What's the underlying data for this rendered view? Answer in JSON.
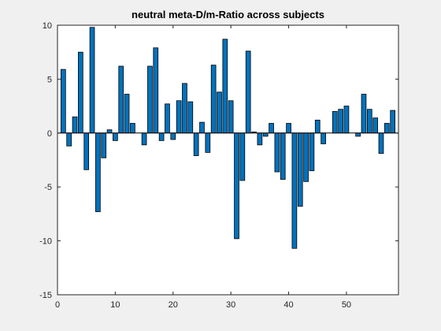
{
  "chart_data": {
    "type": "bar",
    "title": "neutral meta-D/m-Ratio across subjects",
    "xlabel": "",
    "ylabel": "",
    "xlim": [
      0,
      59
    ],
    "ylim": [
      -15,
      10
    ],
    "xticks": [
      0,
      10,
      20,
      30,
      40,
      50
    ],
    "yticks": [
      -15,
      -10,
      -5,
      0,
      5,
      10
    ],
    "grid": false,
    "legend": "none",
    "bar_color": "#0072bd",
    "bar_edge_color": "#000000",
    "x": [
      1,
      2,
      3,
      4,
      5,
      6,
      7,
      8,
      9,
      10,
      11,
      12,
      13,
      14,
      15,
      16,
      17,
      18,
      19,
      20,
      21,
      22,
      23,
      24,
      25,
      26,
      27,
      28,
      29,
      30,
      31,
      32,
      33,
      34,
      35,
      36,
      37,
      38,
      39,
      40,
      41,
      42,
      43,
      44,
      45,
      46,
      47,
      48,
      49,
      50,
      51,
      52,
      53,
      54,
      55,
      56,
      57,
      58
    ],
    "values": [
      5.9,
      -1.2,
      1.5,
      7.5,
      -3.4,
      9.8,
      -7.3,
      -2.3,
      0.3,
      -0.7,
      6.2,
      3.6,
      0.9,
      0,
      -1.1,
      6.2,
      7.9,
      -0.7,
      2.7,
      -0.6,
      3.0,
      4.6,
      2.9,
      -2.1,
      1.0,
      -1.8,
      6.3,
      3.8,
      8.7,
      3.0,
      -9.8,
      -4.4,
      7.6,
      0.1,
      -1.1,
      -0.3,
      0.9,
      -3.6,
      -4.3,
      0.9,
      -10.7,
      -6.8,
      -4.5,
      -3.5,
      1.2,
      -1.0,
      0,
      2.0,
      2.2,
      2.5,
      0,
      -0.3,
      3.6,
      2.2,
      1.4,
      -1.9,
      0.9,
      2.1
    ]
  }
}
